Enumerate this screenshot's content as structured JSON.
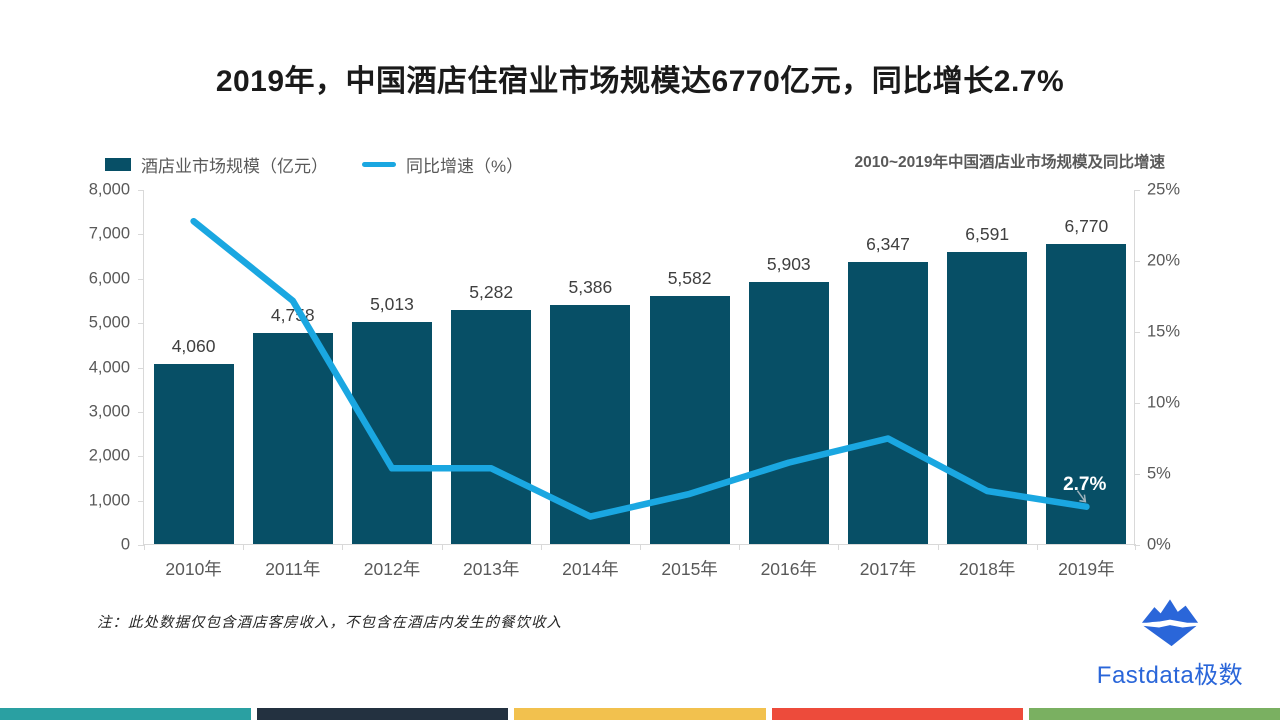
{
  "title": "2019年，中国酒店住宿业市场规模达6770亿元，同比增长2.7%",
  "legend": [
    {
      "label": "酒店业市场规模（亿元）",
      "type": "bar",
      "color": "#074f66"
    },
    {
      "label": "同比增速（%）",
      "type": "line",
      "color": "#1aa7e1"
    }
  ],
  "chart_title": "2010~2019年中国酒店业市场规模及同比增速",
  "chart_data": {
    "type": "combo",
    "categories": [
      "2010年",
      "2011年",
      "2012年",
      "2013年",
      "2014年",
      "2015年",
      "2016年",
      "2017年",
      "2018年",
      "2019年"
    ],
    "series": [
      {
        "name": "酒店业市场规模（亿元）",
        "type": "bar",
        "axis": "left",
        "color": "#074f66",
        "values": [
          4060,
          4758,
          5013,
          5282,
          5386,
          5582,
          5903,
          6347,
          6591,
          6770
        ],
        "labels": [
          "4,060",
          "4,758",
          "5,013",
          "5,282",
          "5,386",
          "5,582",
          "5,903",
          "6,347",
          "6,591",
          "6,770"
        ]
      },
      {
        "name": "同比增速（%）",
        "type": "line",
        "axis": "right",
        "color": "#1aa7e1",
        "values": [
          22.8,
          17.2,
          5.4,
          5.4,
          2.0,
          3.6,
          5.8,
          7.5,
          3.8,
          2.7
        ]
      }
    ],
    "left_axis": {
      "min": 0,
      "max": 8000,
      "ticks": [
        "8,000",
        "7,000",
        "6,000",
        "5,000",
        "4,000",
        "3,000",
        "2,000",
        "1,000",
        "0"
      ]
    },
    "right_axis": {
      "min": 0,
      "max": 25,
      "ticks": [
        "25%",
        "20%",
        "15%",
        "10%",
        "5%",
        "0%"
      ]
    },
    "point_label": {
      "text": "2.7%",
      "index": 9,
      "color": "#ffffff"
    },
    "grid": false,
    "legend_position": "top-left",
    "axis_color": "#d9d9d9"
  },
  "note": "注：此处数据仅包含酒店客房收入，不包含在酒店内发生的餐饮收入",
  "logo": {
    "text": "Fastdata极数",
    "color": "#2a66d9",
    "icon": "iceberg-icon"
  },
  "footer_colors": [
    "#2aa0a2",
    "#233140",
    "#f2c14e",
    "#ed4b3b",
    "#7ab061"
  ]
}
